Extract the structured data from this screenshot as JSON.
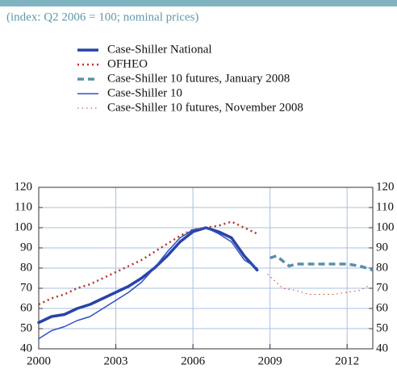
{
  "chart_data": {
    "type": "line",
    "subtitle": "(index: Q2 2006 = 100; nominal prices)",
    "xlim": [
      2000,
      2013
    ],
    "xticks": [
      2000,
      2003,
      2006,
      2009,
      2012
    ],
    "ylim": [
      40,
      120
    ],
    "yticks": [
      40,
      50,
      60,
      70,
      80,
      90,
      100,
      110,
      120
    ],
    "y2lim": [
      40,
      120
    ],
    "y2ticks": [
      40,
      50,
      60,
      70,
      80,
      90,
      100,
      110,
      120
    ],
    "grid": true,
    "series": [
      {
        "name": "Case-Shiller National",
        "color": "#2844a8",
        "x": [
          2000,
          2000.5,
          2001,
          2001.5,
          2002,
          2002.5,
          2003,
          2003.5,
          2004,
          2004.5,
          2005,
          2005.5,
          2006,
          2006.5,
          2007,
          2007.5,
          2008,
          2008.5
        ],
        "values": [
          53,
          56,
          57,
          60,
          62,
          65,
          68,
          71,
          75,
          80,
          86,
          93,
          98,
          100,
          98,
          95,
          86,
          79
        ]
      },
      {
        "name": "OFHEO",
        "color": "#b8302a",
        "x": [
          2000,
          2000.5,
          2001,
          2001.5,
          2002,
          2002.5,
          2003,
          2003.5,
          2004,
          2004.5,
          2005,
          2005.5,
          2006,
          2006.5,
          2007,
          2007.5,
          2008,
          2008.5
        ],
        "values": [
          62,
          65,
          67,
          70,
          72,
          75,
          78,
          81,
          84,
          88,
          92,
          96,
          99,
          100,
          101,
          103,
          100,
          97
        ]
      },
      {
        "name": "Case-Shiller 10 futures, January 2008",
        "color": "#5b8fa8",
        "x": [
          2009,
          2009.25,
          2009.75,
          2010,
          2010.5,
          2011,
          2011.5,
          2012,
          2012.5,
          2013
        ],
        "values": [
          85,
          86,
          81,
          82,
          82,
          82,
          82,
          82,
          81,
          79
        ]
      },
      {
        "name": "Case-Shiller 10",
        "color": "#2f50c0",
        "x": [
          2000,
          2000.5,
          2001,
          2001.5,
          2002,
          2002.5,
          2003,
          2003.5,
          2004,
          2004.5,
          2005,
          2005.5,
          2006,
          2006.5,
          2007,
          2007.5,
          2008,
          2008.5
        ],
        "values": [
          45,
          49,
          51,
          54,
          56,
          60,
          64,
          68,
          73,
          80,
          88,
          95,
          99,
          100,
          97,
          93,
          84,
          80
        ]
      },
      {
        "name": "Case-Shiller 10 futures, November 2008",
        "color": "#c0392b",
        "x": [
          2008.9,
          2009.5,
          2010,
          2010.5,
          2011,
          2011.5,
          2012,
          2012.5,
          2012.8
        ],
        "values": [
          77,
          70,
          69,
          67,
          67,
          67,
          68,
          69,
          71
        ]
      }
    ]
  }
}
